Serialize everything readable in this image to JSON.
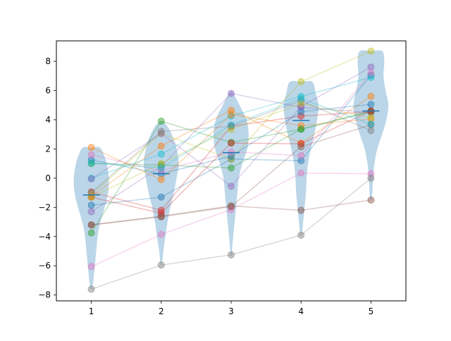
{
  "chart_data": {
    "type": "violin",
    "xlim": [
      0.5,
      5.5
    ],
    "ylim": [
      -8.4,
      9.4
    ],
    "x_ticks": [
      1,
      2,
      3,
      4,
      5
    ],
    "x_tick_labels": [
      "1",
      "2",
      "3",
      "4",
      "5"
    ],
    "y_ticks": [
      -8,
      -6,
      -4,
      -2,
      0,
      2,
      4,
      6,
      8
    ],
    "y_tick_labels": [
      "−8",
      "−6",
      "−4",
      "−2",
      "0",
      "2",
      "4",
      "6",
      "8"
    ],
    "grid": false,
    "legend": "none",
    "violin_color": "#1f77b4",
    "median_color": "#1f77b4",
    "medians": [
      -1.15,
      0.3,
      1.75,
      3.95,
      4.6
    ],
    "violins": [
      {
        "position": 1,
        "y": [
          -7.6,
          -7.0,
          -6.0,
          -5.0,
          -4.0,
          -3.0,
          -2.0,
          -1.0,
          0.0,
          1.0,
          1.6,
          2.1
        ],
        "width": [
          0.01,
          0.03,
          0.05,
          0.07,
          0.09,
          0.13,
          0.19,
          0.24,
          0.25,
          0.22,
          0.18,
          0.12
        ]
      },
      {
        "position": 2,
        "y": [
          -5.9,
          -5.0,
          -4.0,
          -3.0,
          -2.0,
          -1.0,
          0.0,
          1.0,
          2.0,
          3.0,
          3.6,
          3.9
        ],
        "width": [
          0.01,
          0.03,
          0.06,
          0.09,
          0.13,
          0.18,
          0.22,
          0.25,
          0.22,
          0.15,
          0.08,
          0.02
        ]
      },
      {
        "position": 3,
        "y": [
          -5.3,
          -4.5,
          -3.0,
          -2.0,
          -1.0,
          0.0,
          1.0,
          2.0,
          3.0,
          4.0,
          5.0,
          5.9
        ],
        "width": [
          0.01,
          0.02,
          0.05,
          0.07,
          0.09,
          0.11,
          0.16,
          0.23,
          0.25,
          0.22,
          0.12,
          0.02
        ]
      },
      {
        "position": 4,
        "y": [
          -3.9,
          -3.0,
          -2.0,
          -1.0,
          0.0,
          1.0,
          2.0,
          3.0,
          4.0,
          5.0,
          5.8,
          6.6
        ],
        "width": [
          0.01,
          0.03,
          0.05,
          0.07,
          0.08,
          0.1,
          0.14,
          0.19,
          0.23,
          0.25,
          0.21,
          0.16
        ]
      },
      {
        "position": 5,
        "y": [
          -1.5,
          -1.0,
          0.0,
          1.0,
          2.0,
          3.0,
          4.0,
          5.0,
          6.0,
          7.0,
          8.0,
          8.7
        ],
        "width": [
          0.01,
          0.02,
          0.03,
          0.05,
          0.09,
          0.16,
          0.22,
          0.25,
          0.21,
          0.18,
          0.19,
          0.16
        ]
      }
    ],
    "series_colors": [
      "#1f77b4",
      "#ff7f0e",
      "#2ca02c",
      "#d62728",
      "#9467bd",
      "#8c564b",
      "#e377c2",
      "#7f7f7f",
      "#bcbd22",
      "#17becf"
    ],
    "series": [
      {
        "values": [
          -1.85,
          -1.3,
          1.3,
          1.2,
          7.05
        ]
      },
      {
        "values": [
          -1.25,
          2.2,
          4.65,
          2.4,
          5.6
        ]
      },
      {
        "values": [
          -3.75,
          3.9,
          2.45,
          3.35,
          4.6
        ]
      },
      {
        "values": [
          -0.95,
          -2.2,
          3.55,
          4.25,
          4.55
        ]
      },
      {
        "values": [
          -2.3,
          0.8,
          5.8,
          4.85,
          4.5
        ]
      },
      {
        "values": [
          -3.2,
          -2.6,
          -1.9,
          -2.2,
          -1.5
        ]
      },
      {
        "values": [
          -6.05,
          -3.85,
          -2.15,
          0.35,
          0.3
        ]
      },
      {
        "values": [
          -7.6,
          -5.95,
          -5.25,
          -3.9,
          0.0
        ]
      },
      {
        "values": [
          -1.1,
          3.05,
          1.3,
          6.6,
          8.7
        ]
      },
      {
        "values": [
          0.0,
          1.65,
          4.25,
          5.6,
          6.9
        ]
      },
      {
        "values": [
          1.25,
          0.3,
          1.5,
          4.55,
          5.05
        ]
      },
      {
        "values": [
          2.1,
          -0.1,
          4.35,
          3.6,
          4.05
        ]
      },
      {
        "values": [
          1.0,
          0.9,
          0.7,
          3.35,
          4.55
        ]
      },
      {
        "values": [
          -1.3,
          -2.4,
          2.4,
          2.35,
          4.6
        ]
      },
      {
        "values": [
          -0.05,
          3.05,
          -0.55,
          4.9,
          7.6
        ]
      },
      {
        "values": [
          -3.2,
          -2.65,
          -1.95,
          2.15,
          3.65
        ]
      },
      {
        "values": [
          1.6,
          0.5,
          1.8,
          1.55,
          7.2
        ]
      },
      {
        "values": [
          -1.0,
          3.2,
          3.55,
          5.3,
          3.25
        ]
      },
      {
        "values": [
          -1.3,
          1.0,
          3.35,
          5.1,
          4.15
        ]
      },
      {
        "values": [
          1.05,
          0.7,
          3.65,
          5.45,
          3.7
        ]
      }
    ]
  }
}
